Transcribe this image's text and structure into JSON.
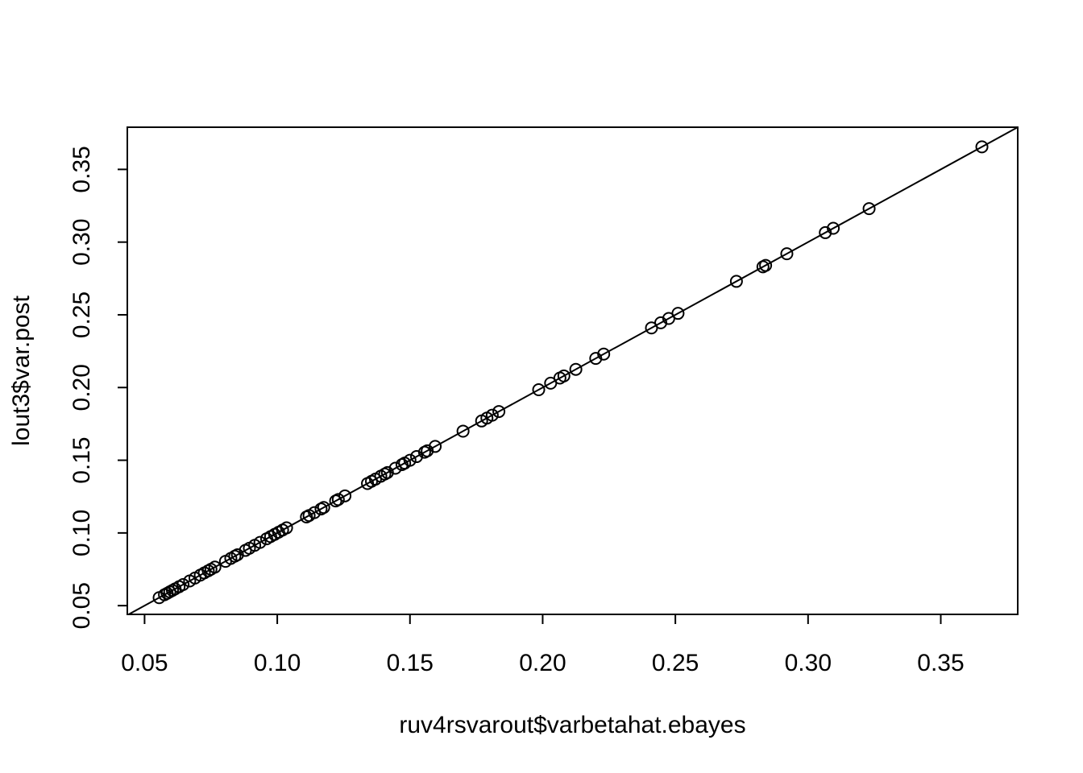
{
  "chart_data": {
    "type": "scatter",
    "xlabel": "ruv4rsvarout$varbetahat.ebayes",
    "ylabel": "lout3$var.post",
    "xlim": [
      0.0435,
      0.379
    ],
    "ylim": [
      0.044,
      0.379
    ],
    "x_ticks": [
      "0.05",
      "0.10",
      "0.15",
      "0.20",
      "0.25",
      "0.30",
      "0.35"
    ],
    "y_ticks": [
      "0.05",
      "0.10",
      "0.15",
      "0.20",
      "0.25",
      "0.30",
      "0.35"
    ],
    "reference_line": {
      "intercept": 0,
      "slope": 1
    },
    "grid": false,
    "legend": "none",
    "points": [
      {
        "x": 0.0555,
        "y": 0.0555
      },
      {
        "x": 0.0575,
        "y": 0.0575
      },
      {
        "x": 0.0585,
        "y": 0.0585
      },
      {
        "x": 0.0595,
        "y": 0.0595
      },
      {
        "x": 0.0605,
        "y": 0.0605
      },
      {
        "x": 0.0615,
        "y": 0.0615
      },
      {
        "x": 0.063,
        "y": 0.063
      },
      {
        "x": 0.0645,
        "y": 0.0645
      },
      {
        "x": 0.067,
        "y": 0.067
      },
      {
        "x": 0.069,
        "y": 0.069
      },
      {
        "x": 0.071,
        "y": 0.071
      },
      {
        "x": 0.0725,
        "y": 0.0725
      },
      {
        "x": 0.074,
        "y": 0.074
      },
      {
        "x": 0.075,
        "y": 0.075
      },
      {
        "x": 0.0765,
        "y": 0.0765
      },
      {
        "x": 0.0805,
        "y": 0.0805
      },
      {
        "x": 0.0825,
        "y": 0.0825
      },
      {
        "x": 0.084,
        "y": 0.084
      },
      {
        "x": 0.085,
        "y": 0.085
      },
      {
        "x": 0.088,
        "y": 0.088
      },
      {
        "x": 0.0895,
        "y": 0.0895
      },
      {
        "x": 0.0915,
        "y": 0.0915
      },
      {
        "x": 0.0935,
        "y": 0.0935
      },
      {
        "x": 0.096,
        "y": 0.096
      },
      {
        "x": 0.0975,
        "y": 0.0975
      },
      {
        "x": 0.099,
        "y": 0.099
      },
      {
        "x": 0.1005,
        "y": 0.1005
      },
      {
        "x": 0.102,
        "y": 0.102
      },
      {
        "x": 0.1035,
        "y": 0.1035
      },
      {
        "x": 0.111,
        "y": 0.111
      },
      {
        "x": 0.112,
        "y": 0.112
      },
      {
        "x": 0.114,
        "y": 0.114
      },
      {
        "x": 0.1165,
        "y": 0.1165
      },
      {
        "x": 0.1175,
        "y": 0.1175
      },
      {
        "x": 0.122,
        "y": 0.122
      },
      {
        "x": 0.123,
        "y": 0.123
      },
      {
        "x": 0.1255,
        "y": 0.1255
      },
      {
        "x": 0.134,
        "y": 0.134
      },
      {
        "x": 0.1355,
        "y": 0.1355
      },
      {
        "x": 0.137,
        "y": 0.137
      },
      {
        "x": 0.139,
        "y": 0.139
      },
      {
        "x": 0.1405,
        "y": 0.1405
      },
      {
        "x": 0.1415,
        "y": 0.1415
      },
      {
        "x": 0.1445,
        "y": 0.1445
      },
      {
        "x": 0.147,
        "y": 0.147
      },
      {
        "x": 0.148,
        "y": 0.148
      },
      {
        "x": 0.15,
        "y": 0.15
      },
      {
        "x": 0.1525,
        "y": 0.1525
      },
      {
        "x": 0.1555,
        "y": 0.1555
      },
      {
        "x": 0.1565,
        "y": 0.1565
      },
      {
        "x": 0.1595,
        "y": 0.1595
      },
      {
        "x": 0.17,
        "y": 0.17
      },
      {
        "x": 0.177,
        "y": 0.177
      },
      {
        "x": 0.179,
        "y": 0.179
      },
      {
        "x": 0.181,
        "y": 0.181
      },
      {
        "x": 0.1835,
        "y": 0.1835
      },
      {
        "x": 0.1985,
        "y": 0.1985
      },
      {
        "x": 0.203,
        "y": 0.203
      },
      {
        "x": 0.2065,
        "y": 0.2065
      },
      {
        "x": 0.208,
        "y": 0.208
      },
      {
        "x": 0.2125,
        "y": 0.2125
      },
      {
        "x": 0.22,
        "y": 0.22
      },
      {
        "x": 0.223,
        "y": 0.223
      },
      {
        "x": 0.241,
        "y": 0.241
      },
      {
        "x": 0.2445,
        "y": 0.2445
      },
      {
        "x": 0.2475,
        "y": 0.2475
      },
      {
        "x": 0.251,
        "y": 0.251
      },
      {
        "x": 0.273,
        "y": 0.273
      },
      {
        "x": 0.283,
        "y": 0.283
      },
      {
        "x": 0.284,
        "y": 0.284
      },
      {
        "x": 0.292,
        "y": 0.292
      },
      {
        "x": 0.3065,
        "y": 0.3065
      },
      {
        "x": 0.3095,
        "y": 0.3095
      },
      {
        "x": 0.323,
        "y": 0.323
      },
      {
        "x": 0.3655,
        "y": 0.3655
      }
    ]
  }
}
